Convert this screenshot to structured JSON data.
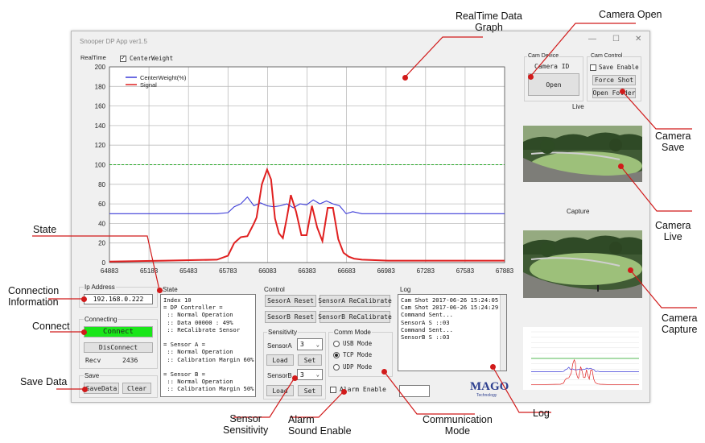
{
  "window": {
    "title": "Snooper DP App ver1.5",
    "controls": {
      "minimize": "—",
      "maximize": "☐",
      "close": "✕"
    }
  },
  "realtime": {
    "label": "RealTime",
    "centerweight_label": "CenterWeight",
    "centerweight_checked": true
  },
  "chart_data": {
    "type": "line",
    "ylim": [
      0,
      200
    ],
    "y_ticks": [
      "0",
      "20",
      "40",
      "60",
      "80",
      "100",
      "120",
      "140",
      "160",
      "180",
      "200"
    ],
    "xlim": [
      64883,
      67883
    ],
    "x_ticks": [
      "64883",
      "65183",
      "65483",
      "65783",
      "66083",
      "66383",
      "66683",
      "66983",
      "67283",
      "67583",
      "67883"
    ],
    "grid": true,
    "legend": "top-left",
    "series": [
      {
        "name": "CenterWeight(%)",
        "color": "#3a3ad8",
        "x": [
          64883,
          65100,
          65400,
          65700,
          65783,
          65830,
          65880,
          65930,
          65980,
          66030,
          66080,
          66130,
          66180,
          66230,
          66280,
          66330,
          66380,
          66430,
          66480,
          66530,
          66580,
          66630,
          66680,
          66730,
          66800,
          67000,
          67300,
          67600,
          67883
        ],
        "y": [
          50,
          50,
          50,
          50,
          51,
          57,
          60,
          67,
          58,
          61,
          58,
          57,
          58,
          60,
          56,
          60,
          59,
          64,
          60,
          63,
          60,
          58,
          50,
          52,
          50,
          50,
          50,
          50,
          50
        ]
      },
      {
        "name": "Signal",
        "color": "#e02020",
        "x": [
          64883,
          65300,
          65700,
          65783,
          65830,
          65880,
          65930,
          65980,
          66000,
          66040,
          66080,
          66110,
          66140,
          66170,
          66200,
          66230,
          66260,
          66300,
          66340,
          66380,
          66420,
          66460,
          66500,
          66540,
          66580,
          66620,
          66660,
          66700,
          66740,
          66800,
          67000,
          67300,
          67600,
          67883
        ],
        "y": [
          1,
          2,
          3,
          7,
          20,
          26,
          27,
          40,
          46,
          80,
          95,
          85,
          45,
          30,
          25,
          46,
          69,
          52,
          28,
          28,
          58,
          36,
          22,
          56,
          56,
          24,
          10,
          6,
          4,
          3,
          2,
          2,
          2,
          2
        ]
      },
      {
        "name": "",
        "color": "#22a822",
        "x": [
          64883,
          67883
        ],
        "y": [
          100,
          100
        ]
      }
    ]
  },
  "cam_device": {
    "title": "Cam Device",
    "camera_id_label": "Camera ID",
    "open_label": "Open"
  },
  "cam_control": {
    "title": "Cam Control",
    "save_enable_label": "Save Enable",
    "force_shot_label": "Force Shot",
    "open_folder_label": "Open Folder"
  },
  "live_label": "Live",
  "capture_label": "Capture",
  "ip": {
    "title": "Ip Address",
    "value": "192.168.0.222"
  },
  "connecting": {
    "title": "Connecting",
    "connect_label": "Connect",
    "connect_color": "#19e619",
    "disconnect_label": "DisConnect",
    "recv_label": "Recv",
    "recv_value": "2436"
  },
  "save": {
    "title": "Save",
    "savedata_label": "SaveData",
    "clear_label": "Clear"
  },
  "state": {
    "title": "State",
    "text": "Index 10\n= DP Controller =\n :: Normal Operation\n :: Data 00000 : 49%\n :: ReCalibrate Sensor\n\n= Sensor A =\n :: Normal Operation\n :: Calibration Margin 60%\n\n= Sensor B =\n :: Normal Operation\n :: Calibration Margin 50%"
  },
  "control": {
    "title": "Control",
    "sensor_a_reset": "SesorA Reset",
    "sensor_a_recal": "SensorA ReCalibrate",
    "sensor_b_reset": "SesorB Reset",
    "sensor_b_recal": "SensorB ReCalibrate"
  },
  "sensitivity": {
    "title": "Sensitivity",
    "sensor_a_label": "SensorA",
    "sensor_a_value": "3",
    "sensor_b_label": "SensorB",
    "sensor_b_value": "3",
    "load_label": "Load",
    "set_label": "Set"
  },
  "comm_mode": {
    "title": "Comm Mode",
    "options": [
      "USB Mode",
      "TCP Mode",
      "UDP Mode"
    ],
    "selected": "TCP Mode"
  },
  "alarm": {
    "label": "Alarm Enable",
    "checked": false
  },
  "log": {
    "title": "Log",
    "text": "Cam Shot 2017-06-26 15:24:05\nCam Shot 2017-06-26 15:24:29\nCommand Sent...\nSensorA S ::03\nCommand Sent...\nSensorB S ::03"
  },
  "logo": {
    "text": "MAGO",
    "subtext": "Technology"
  },
  "annotations": {
    "realtime_graph": "RealTime Data\nGraph",
    "camera_open": "Camera Open",
    "camera_save": "Camera\nSave",
    "camera_live": "Camera\nLive",
    "camera_capture": "Camera\nCapture",
    "state": "State",
    "connection_info": "Connection\nInformation",
    "connect": "Connect",
    "save_data": "Save Data",
    "sensor_sensitivity": "Sensor\nSensitivity",
    "alarm_sound": "Alarm\nSound Enable",
    "comm_mode": "Communication\nMode",
    "log": "Log"
  }
}
